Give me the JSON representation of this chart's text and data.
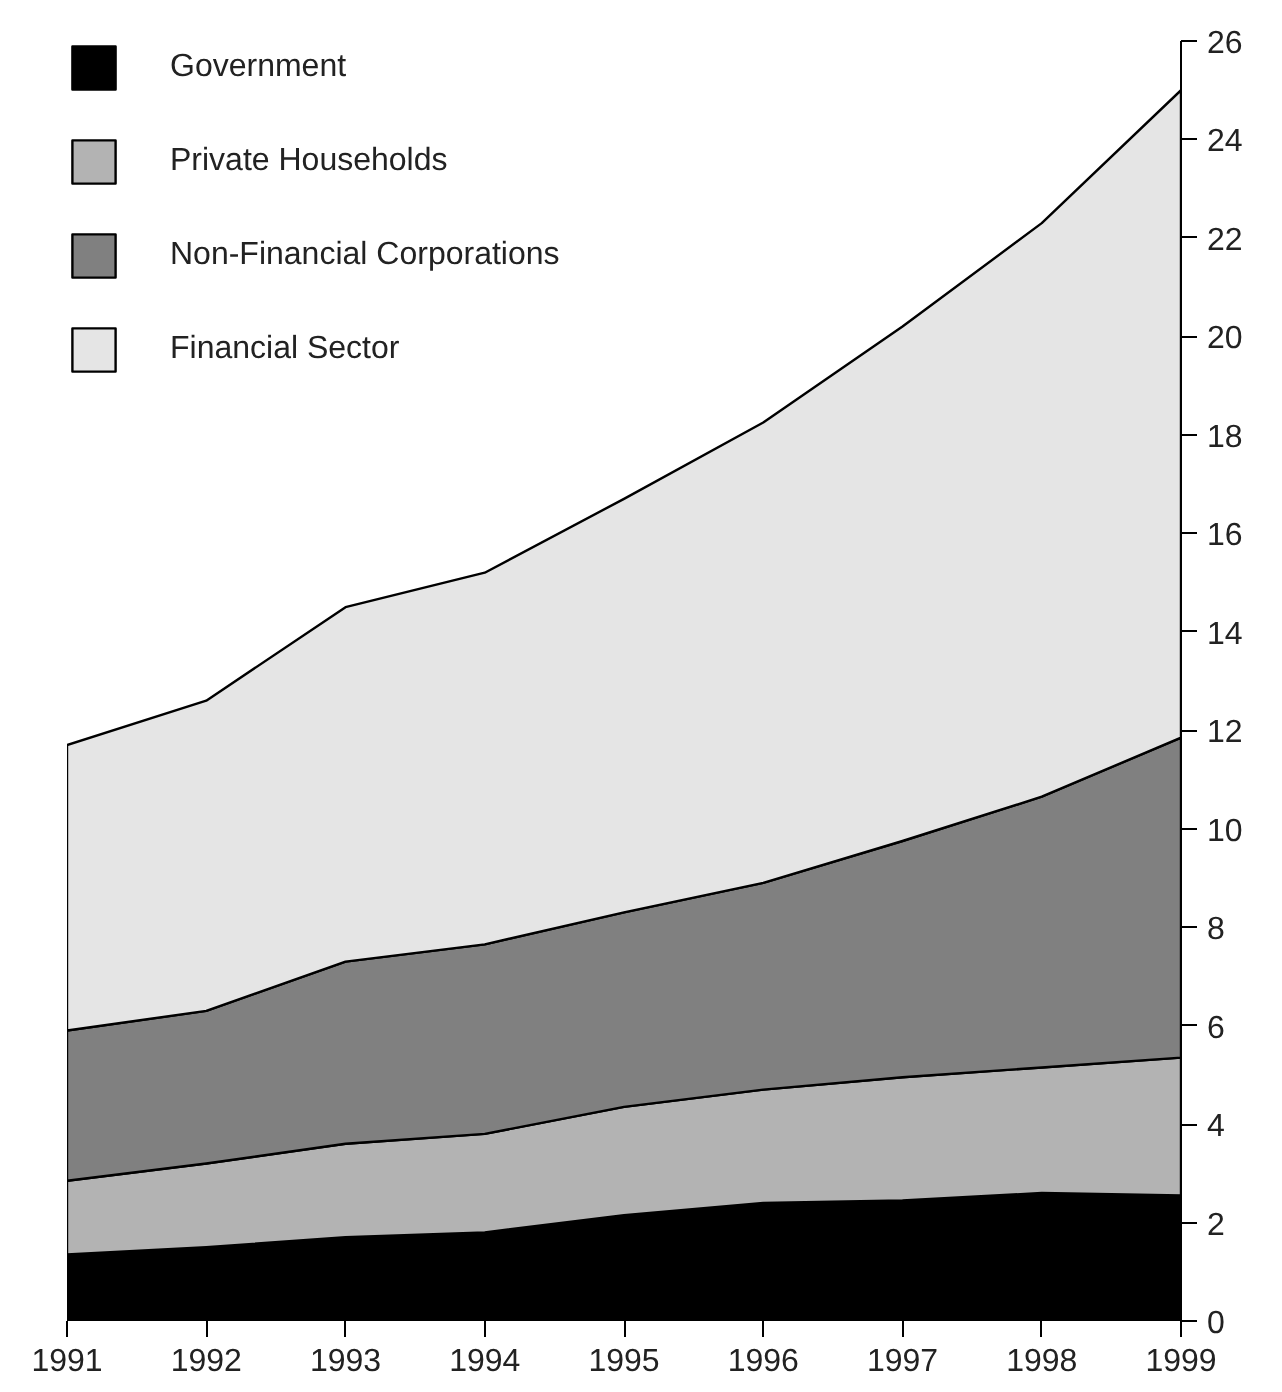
{
  "chart_data": {
    "type": "area",
    "stacked": true,
    "x": [
      1991,
      1992,
      1993,
      1994,
      1995,
      1996,
      1997,
      1998,
      1999
    ],
    "series": [
      {
        "name": "Government",
        "color": "#000000",
        "values": [
          1.35,
          1.5,
          1.7,
          1.8,
          2.15,
          2.4,
          2.45,
          2.6,
          2.55
        ]
      },
      {
        "name": "Private Households",
        "color": "#b3b3b3",
        "values": [
          1.5,
          1.7,
          1.9,
          2.0,
          2.2,
          2.3,
          2.5,
          2.55,
          2.8
        ]
      },
      {
        "name": "Non-Financial Corporations",
        "color": "#808080",
        "values": [
          3.05,
          3.1,
          3.7,
          3.85,
          3.95,
          4.2,
          4.8,
          5.5,
          6.5
        ]
      },
      {
        "name": "Financial Sector",
        "color": "#e5e5e5",
        "values": [
          5.8,
          6.3,
          7.2,
          7.55,
          8.4,
          9.35,
          10.45,
          11.65,
          13.15
        ]
      }
    ],
    "xlim": [
      1991,
      1999
    ],
    "xticks": [
      1991,
      1992,
      1993,
      1994,
      1995,
      1996,
      1997,
      1998,
      1999
    ],
    "ylim": [
      0,
      26
    ],
    "yticks": [
      0,
      2,
      4,
      6,
      8,
      10,
      12,
      14,
      16,
      18,
      20,
      22,
      24,
      26
    ],
    "grid": false,
    "legend": "top left"
  }
}
